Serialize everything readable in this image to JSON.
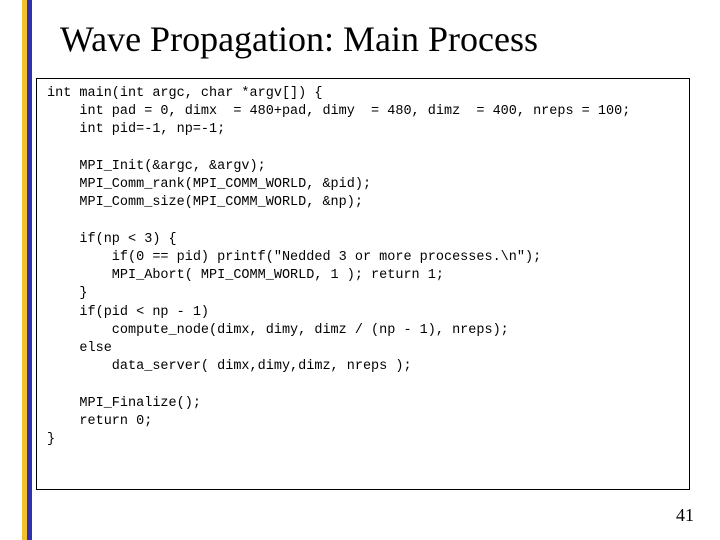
{
  "slide": {
    "title": "Wave Propagation: Main Process",
    "page_number": "41",
    "accent_yellow": "#f0c030",
    "accent_blue": "#3030b0",
    "background": "#ffffff",
    "title_fontsize": 36,
    "code_fontsize": 13.5,
    "code_fontfamily": "Courier New"
  },
  "code": {
    "l01": "int main(int argc, char *argv[]) {",
    "l02": "    int pad = 0, dimx  = 480+pad, dimy  = 480, dimz  = 400, nreps = 100;",
    "l03": "    int pid=-1, np=-1;",
    "l04": "",
    "l05": "    MPI_Init(&argc, &argv);",
    "l06": "    MPI_Comm_rank(MPI_COMM_WORLD, &pid);",
    "l07": "    MPI_Comm_size(MPI_COMM_WORLD, &np);",
    "l08": "",
    "l09": "    if(np < 3) {",
    "l10": "        if(0 == pid) printf(\"Nedded 3 or more processes.\\n\");",
    "l11": "        MPI_Abort( MPI_COMM_WORLD, 1 ); return 1;",
    "l12": "    }",
    "l13": "    if(pid < np - 1)",
    "l14": "        compute_node(dimx, dimy, dimz / (np - 1), nreps);",
    "l15": "    else",
    "l16": "        data_server( dimx,dimy,dimz, nreps );",
    "l17": "",
    "l18": "    MPI_Finalize();",
    "l19": "    return 0;",
    "l20": "}"
  }
}
